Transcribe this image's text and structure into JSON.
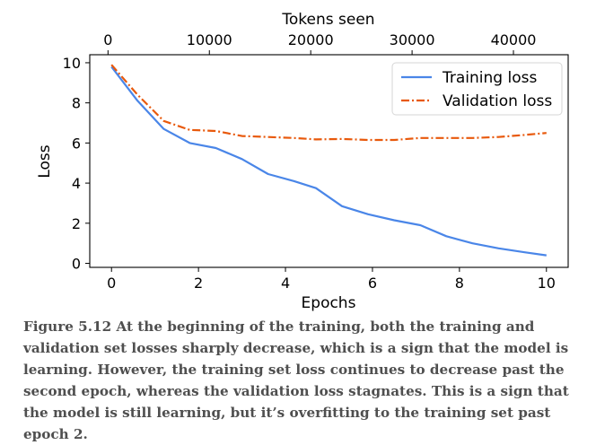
{
  "chart_data": {
    "type": "line",
    "xlabel": "Epochs",
    "ylabel": "Loss",
    "secondary_xlabel": "Tokens seen",
    "xlim": [
      -0.5,
      10.5
    ],
    "ylim": [
      -0.2,
      10.4
    ],
    "secondary_xlim": [
      -1800,
      45400
    ],
    "x_ticks": [
      0,
      2,
      4,
      6,
      8,
      10
    ],
    "y_ticks": [
      0,
      2,
      4,
      6,
      8,
      10
    ],
    "secondary_x_ticks": [
      0,
      10000,
      20000,
      30000,
      40000
    ],
    "grid": false,
    "legend_position": "top-right",
    "series": [
      {
        "name": "Training loss",
        "color": "#4a86e8",
        "line_style": "solid",
        "x": [
          0,
          0.6,
          1.2,
          1.8,
          2.4,
          3.0,
          3.6,
          4.2,
          4.7,
          5.3,
          5.9,
          6.5,
          7.1,
          7.7,
          8.3,
          8.9,
          9.5,
          10
        ],
        "y": [
          9.8,
          8.1,
          6.7,
          6.0,
          5.75,
          5.2,
          4.45,
          4.1,
          3.75,
          2.85,
          2.45,
          2.15,
          1.9,
          1.35,
          1.0,
          0.75,
          0.55,
          0.4
        ]
      },
      {
        "name": "Validation loss",
        "color": "#e8590c",
        "line_style": "dash-dot",
        "x": [
          0,
          0.6,
          1.2,
          1.8,
          2.4,
          3.0,
          3.6,
          4.2,
          4.7,
          5.3,
          5.9,
          6.5,
          7.1,
          7.7,
          8.3,
          8.9,
          9.5,
          10
        ],
        "y": [
          9.9,
          8.4,
          7.1,
          6.65,
          6.6,
          6.35,
          6.3,
          6.25,
          6.18,
          6.2,
          6.15,
          6.15,
          6.25,
          6.25,
          6.25,
          6.3,
          6.4,
          6.5
        ]
      }
    ]
  },
  "caption": {
    "label": "Figure 5.12",
    "text": "At the beginning of the training, both the training and validation set losses sharply decrease, which is a sign that the model is learning. However, the training set loss continues to decrease past the second epoch, whereas the validation loss stagnates. This is a sign that the model is still learning, but it’s overfitting to the training set past epoch 2."
  }
}
